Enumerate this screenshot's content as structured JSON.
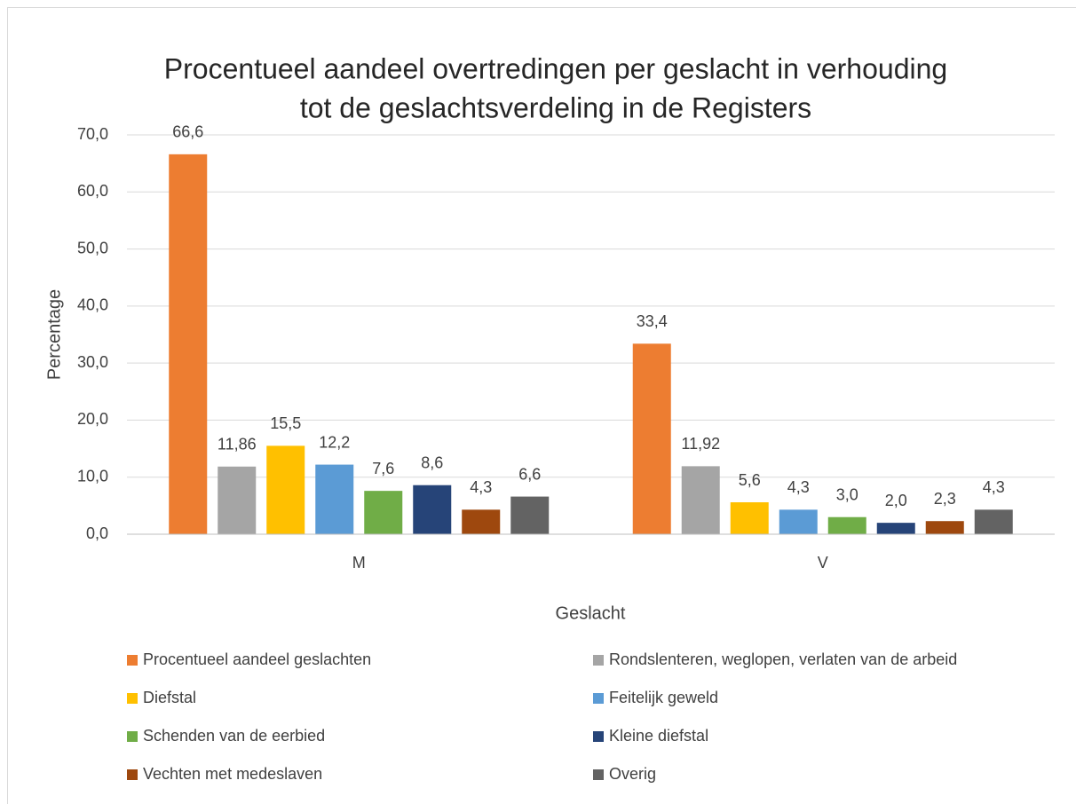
{
  "chart_data": {
    "type": "bar",
    "title": [
      "Procentueel aandeel overtredingen per geslacht in verhouding",
      "tot de geslachtsverdeling in de Registers"
    ],
    "x_label": "Geslacht",
    "y_label": "Percentage",
    "categories": [
      "M",
      "V"
    ],
    "series": [
      {
        "name": "Procentueel aandeel geslachten",
        "color": "#ED7D31",
        "values": [
          66.6,
          33.4
        ],
        "value_labels": [
          "66,6",
          "33,4"
        ]
      },
      {
        "name": "Rondslenteren, weglopen, verlaten van de arbeid",
        "color": "#A5A5A5",
        "values": [
          11.86,
          11.92
        ],
        "value_labels": [
          "11,86",
          "11,92"
        ]
      },
      {
        "name": "Diefstal",
        "color": "#FFC000",
        "values": [
          15.5,
          5.6
        ],
        "value_labels": [
          "15,5",
          "5,6"
        ]
      },
      {
        "name": "Feitelijk geweld",
        "color": "#5B9BD5",
        "values": [
          12.2,
          4.3
        ],
        "value_labels": [
          "12,2",
          "4,3"
        ]
      },
      {
        "name": "Schenden van de eerbied",
        "color": "#70AD47",
        "values": [
          7.6,
          3.0
        ],
        "value_labels": [
          "7,6",
          "3,0"
        ]
      },
      {
        "name": "Kleine diefstal",
        "color": "#264478",
        "values": [
          8.6,
          2.0
        ],
        "value_labels": [
          "8,6",
          "2,0"
        ]
      },
      {
        "name": "Vechten met medeslaven",
        "color": "#9E480E",
        "values": [
          4.3,
          2.3
        ],
        "value_labels": [
          "4,3",
          "2,3"
        ]
      },
      {
        "name": "Overig",
        "color": "#636363",
        "values": [
          6.6,
          4.3
        ],
        "value_labels": [
          "6,6",
          "4,3"
        ]
      }
    ],
    "ylim": [
      0,
      70
    ],
    "yticks": [
      {
        "value": 0,
        "label": "0,0"
      },
      {
        "value": 10,
        "label": "10,0"
      },
      {
        "value": 20,
        "label": "20,0"
      },
      {
        "value": 30,
        "label": "30,0"
      },
      {
        "value": 40,
        "label": "40,0"
      },
      {
        "value": 50,
        "label": "50,0"
      },
      {
        "value": 60,
        "label": "60,0"
      },
      {
        "value": 70,
        "label": "70,0"
      }
    ],
    "grid": true,
    "legend": "bottom"
  }
}
